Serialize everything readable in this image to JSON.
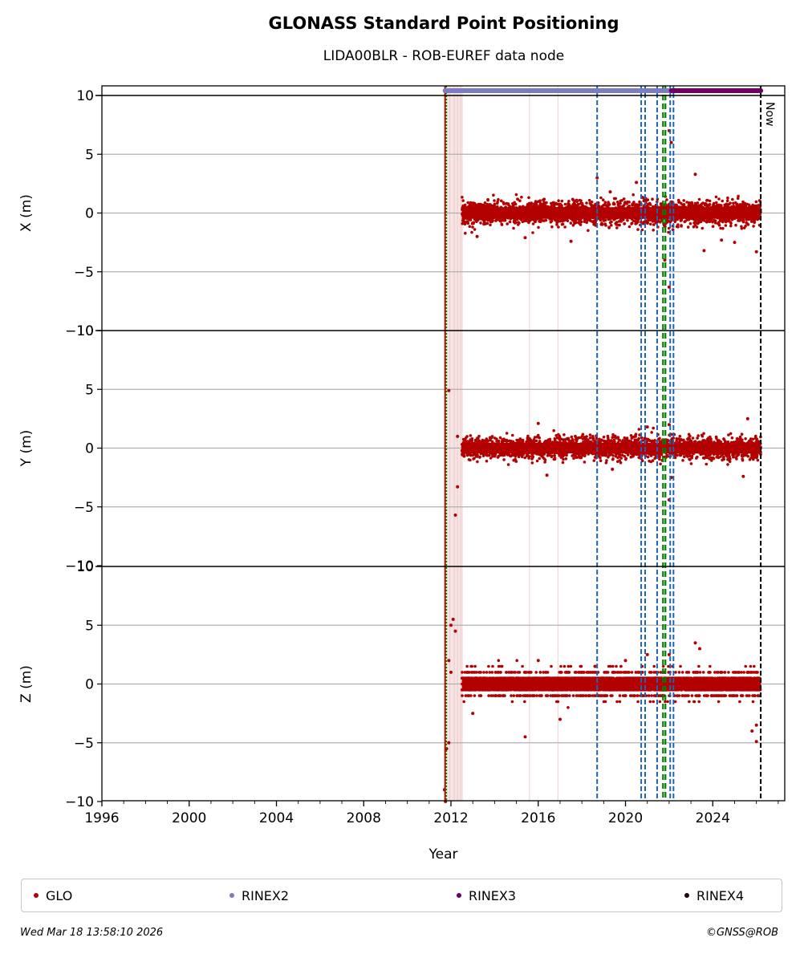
{
  "chart_data": {
    "type": "scatter",
    "title": "GLONASS Standard Point Positioning",
    "subtitle": "LIDA00BLR - ROB-EUREF data node",
    "xlabel": "Year",
    "xlim": [
      1996,
      2027.3
    ],
    "x_ticks": [
      "1996",
      "2000",
      "2004",
      "2008",
      "2012",
      "2016",
      "2020",
      "2024"
    ],
    "grid": true,
    "panels": [
      {
        "ylabel": "X (m)",
        "ylim": [
          -10,
          10
        ],
        "y_ticks": [
          "10",
          "5",
          "0",
          "−5",
          "−10"
        ],
        "band": {
          "start": 2012.5,
          "end": 2026.2,
          "center": 0,
          "spread": 1.1
        },
        "outliers": [
          [
            2018.7,
            3.0
          ],
          [
            2019.3,
            1.8
          ],
          [
            2020.5,
            2.6
          ],
          [
            2022.0,
            7.0
          ],
          [
            2022.1,
            6.0
          ],
          [
            2021.8,
            -4.0
          ],
          [
            2022.0,
            -6.3
          ],
          [
            2023.2,
            3.3
          ],
          [
            2023.6,
            -3.2
          ],
          [
            2025.0,
            -2.5
          ],
          [
            2026.0,
            -3.3
          ],
          [
            2015.4,
            -2.1
          ],
          [
            2013.2,
            -2.0
          ],
          [
            2017.5,
            -2.4
          ],
          [
            2024.4,
            -2.3
          ]
        ]
      },
      {
        "ylabel": "Y (m)",
        "ylim": [
          -10,
          10
        ],
        "y_ticks": [
          "10",
          "5",
          "0",
          "−5",
          "−10"
        ],
        "band": {
          "start": 2012.5,
          "end": 2026.2,
          "center": 0,
          "spread": 1.0
        },
        "outliers": [
          [
            2011.9,
            4.9
          ],
          [
            2012.3,
            -3.3
          ],
          [
            2012.2,
            -5.7
          ],
          [
            2012.3,
            1.0
          ],
          [
            2016.0,
            2.1
          ],
          [
            2016.4,
            -2.3
          ],
          [
            2022.0,
            -4.4
          ],
          [
            2022.1,
            -2.5
          ],
          [
            2022.0,
            2.0
          ],
          [
            2025.6,
            2.5
          ],
          [
            2025.4,
            -2.4
          ],
          [
            2021.0,
            1.8
          ],
          [
            2019.4,
            -1.8
          ]
        ]
      },
      {
        "ylabel": "Z (m)",
        "ylim": [
          -10,
          10
        ],
        "y_ticks": [
          "10",
          "5",
          "0",
          "−5",
          "−10"
        ],
        "band": {
          "start": 2012.5,
          "end": 2026.2,
          "center": 0,
          "spread": 1.2,
          "step": 0.5
        },
        "outliers": [
          [
            2011.8,
            -5.5
          ],
          [
            2011.9,
            -5.0
          ],
          [
            2012.0,
            5.0
          ],
          [
            2012.1,
            5.5
          ],
          [
            2012.2,
            4.5
          ],
          [
            2011.7,
            -9.0
          ],
          [
            2011.75,
            -10.0
          ],
          [
            2011.9,
            2.0
          ],
          [
            2012.0,
            1.0
          ],
          [
            2015.4,
            -4.5
          ],
          [
            2023.2,
            3.5
          ],
          [
            2023.4,
            3.0
          ],
          [
            2026.0,
            -4.9
          ],
          [
            2025.8,
            -4.0
          ],
          [
            2026.0,
            -3.5
          ],
          [
            2018.6,
            1.5
          ],
          [
            2017.0,
            -3.0
          ],
          [
            2013.0,
            -2.5
          ],
          [
            2020.0,
            2.0
          ],
          [
            2021.0,
            2.5
          ],
          [
            2022.0,
            2.5
          ],
          [
            2016.0,
            2.0
          ]
        ]
      }
    ],
    "events": {
      "red_line": 2011.73,
      "green_lines": [
        2011.78,
        2021.72,
        2021.83
      ],
      "blue_dashed": [
        2018.7,
        2020.72,
        2020.9,
        2021.45,
        2022.05,
        2022.2
      ],
      "now_line": 2026.2,
      "now_label": "Now",
      "pink_spans": [
        [
          2011.73,
          2012.55
        ]
      ],
      "thin_lines": [
        2011.95,
        2012.15,
        2012.3,
        2012.45,
        2015.6,
        2016.9
      ]
    },
    "availability": [
      {
        "name": "RINEX2",
        "start": 2011.73,
        "end": 2022.1,
        "color": "#7b7dbf"
      },
      {
        "name": "RINEX3",
        "start": 2022.1,
        "end": 2026.2,
        "color": "#6c0063"
      }
    ],
    "legend": {
      "placement": "bottom",
      "items": [
        {
          "label": "GLO",
          "color": "#b30000"
        },
        {
          "label": "RINEX2",
          "color": "#7b7dbf"
        },
        {
          "label": "RINEX3",
          "color": "#6c0063"
        },
        {
          "label": "RINEX4",
          "color": "#1e0518"
        }
      ]
    }
  },
  "footer": {
    "left": "Wed Mar 18 13:58:10 2026",
    "right": "©GNSS@ROB"
  }
}
